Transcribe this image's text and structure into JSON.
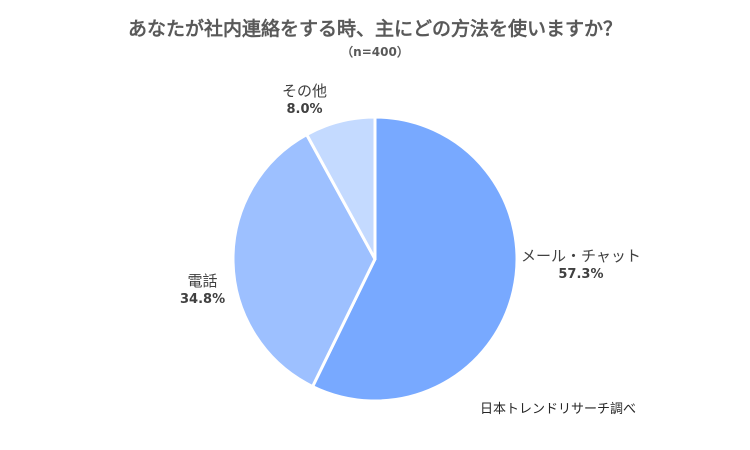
{
  "chart_data": {
    "type": "pie",
    "title": "あなたが社内連絡をする時、主にどの方法を使いますか？",
    "subtitle": "（n=400）",
    "slices": [
      {
        "label": "メール・チャット",
        "value": 57.3,
        "value_label": "57.3%",
        "color": "#78a9ff"
      },
      {
        "label": "電話",
        "value": 34.8,
        "value_label": "34.8%",
        "color": "#9dc0ff"
      },
      {
        "label": "その他",
        "value": 8.0,
        "value_label": "8.0%",
        "color": "#c4daff"
      }
    ],
    "start": "12 o'clock",
    "direction": "clockwise",
    "legend": "none"
  },
  "source_note": "日本トレンドリサーチ調べ"
}
